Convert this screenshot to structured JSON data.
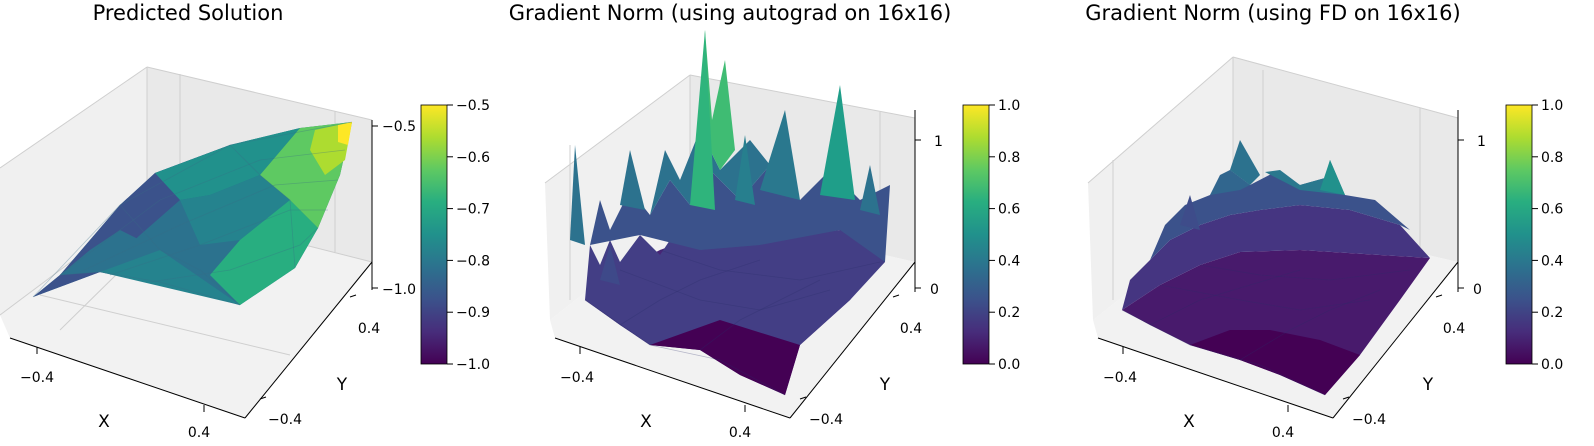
{
  "chart_data": [
    {
      "type": "surface3d",
      "title": "Predicted Solution",
      "xlabel": "X",
      "ylabel": "Y",
      "x_ticks": [
        "−0.4",
        "0.4"
      ],
      "y_ticks": [
        "−0.4",
        "0.4"
      ],
      "z_ticks": [
        "−1.0",
        "−0.5"
      ],
      "zlim": [
        -1.0,
        -0.5
      ],
      "colormap": "viridis",
      "colorbar": {
        "min": -1.0,
        "max": -0.5,
        "ticks": [
          "−1.0",
          "−0.9",
          "−0.8",
          "−0.7",
          "−0.6",
          "−0.5"
        ]
      }
    },
    {
      "type": "surface3d",
      "title": "Gradient Norm (using autograd on 16x16)",
      "xlabel": "X",
      "ylabel": "Y",
      "x_ticks": [
        "−0.4",
        "0.4"
      ],
      "y_ticks": [
        "−0.4",
        "0.4"
      ],
      "z_ticks": [
        "0",
        "1"
      ],
      "zlim": [
        0,
        1
      ],
      "colormap": "viridis",
      "colorbar": {
        "min": 0.0,
        "max": 1.0,
        "ticks": [
          "0.0",
          "0.2",
          "0.4",
          "0.6",
          "0.8",
          "1.0"
        ]
      }
    },
    {
      "type": "surface3d",
      "title": "Gradient Norm (using FD on 16x16)",
      "xlabel": "X",
      "ylabel": "Y",
      "x_ticks": [
        "−0.4",
        "0.4"
      ],
      "y_ticks": [
        "−0.4",
        "0.4"
      ],
      "z_ticks": [
        "0",
        "1"
      ],
      "zlim": [
        0,
        1
      ],
      "colormap": "viridis",
      "colorbar": {
        "min": 0.0,
        "max": 1.0,
        "ticks": [
          "0.0",
          "0.2",
          "0.4",
          "0.6",
          "0.8",
          "1.0"
        ]
      }
    }
  ]
}
